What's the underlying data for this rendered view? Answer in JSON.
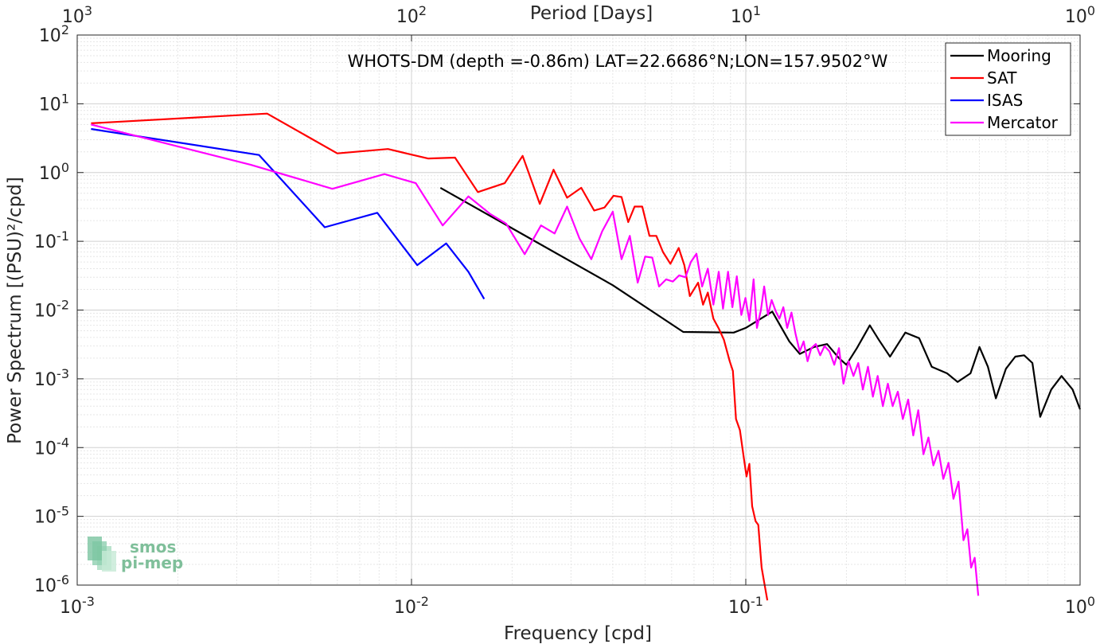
{
  "chart_data": {
    "type": "line",
    "title": "WHOTS-DM (depth =-0.86m) LAT=22.6686°N;LON=157.9502°W",
    "xlabel": "Frequency [cpd]",
    "ylabel": "Power Spectrum [(PSU)²/cpd]",
    "top_xlabel": "Period [Days]",
    "x_scale": "log",
    "y_scale": "log",
    "xlim": [
      0.001,
      1
    ],
    "ylim": [
      1e-06,
      100
    ],
    "grid": true,
    "legend_position": "top-right",
    "x_tick_labels": [
      {
        "base": "10",
        "exp": "-3",
        "value": 0.001
      },
      {
        "base": "10",
        "exp": "-2",
        "value": 0.01
      },
      {
        "base": "10",
        "exp": "-1",
        "value": 0.1
      },
      {
        "base": "10",
        "exp": "0",
        "value": 1
      }
    ],
    "top_tick_labels": [
      {
        "base": "10",
        "exp": "3",
        "value": 0.001
      },
      {
        "base": "10",
        "exp": "2",
        "value": 0.01
      },
      {
        "base": "10",
        "exp": "1",
        "value": 0.1
      },
      {
        "base": "10",
        "exp": "0",
        "value": 1
      }
    ],
    "y_tick_labels": [
      {
        "base": "10",
        "exp": "2",
        "value": 100
      },
      {
        "base": "10",
        "exp": "1",
        "value": 10
      },
      {
        "base": "10",
        "exp": "0",
        "value": 1
      },
      {
        "base": "10",
        "exp": "-1",
        "value": 0.1
      },
      {
        "base": "10",
        "exp": "-2",
        "value": 0.01
      },
      {
        "base": "10",
        "exp": "-3",
        "value": 0.001
      },
      {
        "base": "10",
        "exp": "-4",
        "value": 0.0001
      },
      {
        "base": "10",
        "exp": "-5",
        "value": 1e-05
      },
      {
        "base": "10",
        "exp": "-6",
        "value": 1e-06
      }
    ],
    "series": [
      {
        "name": "Mooring",
        "color": "#000000",
        "points": [
          [
            0.0122,
            0.6
          ],
          [
            0.04,
            0.023
          ],
          [
            0.065,
            0.0048
          ],
          [
            0.092,
            0.0047
          ],
          [
            0.1,
            0.0055
          ],
          [
            0.12,
            0.0095
          ],
          [
            0.135,
            0.0035
          ],
          [
            0.145,
            0.0023
          ],
          [
            0.16,
            0.0029
          ],
          [
            0.175,
            0.0032
          ],
          [
            0.19,
            0.002
          ],
          [
            0.2,
            0.0016
          ],
          [
            0.215,
            0.0028
          ],
          [
            0.235,
            0.006
          ],
          [
            0.25,
            0.0037
          ],
          [
            0.27,
            0.0021
          ],
          [
            0.3,
            0.0047
          ],
          [
            0.33,
            0.0039
          ],
          [
            0.36,
            0.0015
          ],
          [
            0.4,
            0.0012
          ],
          [
            0.43,
            0.0009
          ],
          [
            0.47,
            0.0012
          ],
          [
            0.5,
            0.0029
          ],
          [
            0.53,
            0.0015
          ],
          [
            0.56,
            0.00052
          ],
          [
            0.6,
            0.0014
          ],
          [
            0.64,
            0.0021
          ],
          [
            0.68,
            0.0022
          ],
          [
            0.72,
            0.0017
          ],
          [
            0.76,
            0.00028
          ],
          [
            0.82,
            0.0007
          ],
          [
            0.88,
            0.0011
          ],
          [
            0.95,
            0.0007
          ],
          [
            1.0,
            0.00036
          ]
        ]
      },
      {
        "name": "SAT",
        "color": "#ff0000",
        "points": [
          [
            0.0011,
            5.2
          ],
          [
            0.0037,
            7.2
          ],
          [
            0.006,
            1.9
          ],
          [
            0.0085,
            2.2
          ],
          [
            0.0112,
            1.6
          ],
          [
            0.0135,
            1.65
          ],
          [
            0.0158,
            0.52
          ],
          [
            0.019,
            0.7
          ],
          [
            0.0215,
            1.75
          ],
          [
            0.0242,
            0.35
          ],
          [
            0.0266,
            1.1
          ],
          [
            0.0292,
            0.43
          ],
          [
            0.0322,
            0.6
          ],
          [
            0.0352,
            0.28
          ],
          [
            0.0378,
            0.31
          ],
          [
            0.0402,
            0.46
          ],
          [
            0.0425,
            0.44
          ],
          [
            0.0445,
            0.19
          ],
          [
            0.0465,
            0.32
          ],
          [
            0.049,
            0.32
          ],
          [
            0.0515,
            0.12
          ],
          [
            0.054,
            0.12
          ],
          [
            0.0565,
            0.07
          ],
          [
            0.0595,
            0.047
          ],
          [
            0.063,
            0.08
          ],
          [
            0.0655,
            0.045
          ],
          [
            0.068,
            0.016
          ],
          [
            0.072,
            0.025
          ],
          [
            0.0745,
            0.012
          ],
          [
            0.077,
            0.018
          ],
          [
            0.08,
            0.0075
          ],
          [
            0.083,
            0.0054
          ],
          [
            0.086,
            0.0037
          ],
          [
            0.0895,
            0.0018
          ],
          [
            0.0915,
            0.0013
          ],
          [
            0.0935,
            0.00026
          ],
          [
            0.096,
            0.00018
          ],
          [
            0.0985,
            7.5e-05
          ],
          [
            0.1005,
            3.8e-05
          ],
          [
            0.1025,
            5.8e-05
          ],
          [
            0.1045,
            1.4e-05
          ],
          [
            0.107,
            8.5e-06
          ],
          [
            0.109,
            7.5e-06
          ],
          [
            0.1115,
            1.8e-06
          ],
          [
            0.1135,
            1.1e-06
          ],
          [
            0.116,
            6e-07
          ]
        ]
      },
      {
        "name": "ISAS",
        "color": "#0000ff",
        "points": [
          [
            0.0011,
            4.3
          ],
          [
            0.0035,
            1.8
          ],
          [
            0.0055,
            0.16
          ],
          [
            0.0079,
            0.26
          ],
          [
            0.0104,
            0.045
          ],
          [
            0.0127,
            0.093
          ],
          [
            0.0148,
            0.036
          ],
          [
            0.0165,
            0.0145
          ]
        ]
      },
      {
        "name": "Mercator",
        "color": "#ff00ff",
        "points": [
          [
            0.0011,
            5.0
          ],
          [
            0.0033,
            1.3
          ],
          [
            0.0058,
            0.58
          ],
          [
            0.0083,
            0.95
          ],
          [
            0.0103,
            0.7
          ],
          [
            0.0124,
            0.17
          ],
          [
            0.0148,
            0.45
          ],
          [
            0.0172,
            0.25
          ],
          [
            0.0192,
            0.18
          ],
          [
            0.0218,
            0.065
          ],
          [
            0.0244,
            0.17
          ],
          [
            0.0268,
            0.13
          ],
          [
            0.0292,
            0.32
          ],
          [
            0.0318,
            0.11
          ],
          [
            0.0345,
            0.055
          ],
          [
            0.0372,
            0.14
          ],
          [
            0.04,
            0.27
          ],
          [
            0.0425,
            0.055
          ],
          [
            0.045,
            0.12
          ],
          [
            0.0475,
            0.025
          ],
          [
            0.05,
            0.06
          ],
          [
            0.0525,
            0.058
          ],
          [
            0.055,
            0.022
          ],
          [
            0.0578,
            0.028
          ],
          [
            0.0605,
            0.026
          ],
          [
            0.0632,
            0.032
          ],
          [
            0.066,
            0.03
          ],
          [
            0.0685,
            0.05
          ],
          [
            0.0712,
            0.066
          ],
          [
            0.074,
            0.022
          ],
          [
            0.077,
            0.04
          ],
          [
            0.08,
            0.012
          ],
          [
            0.083,
            0.036
          ],
          [
            0.0855,
            0.0105
          ],
          [
            0.0885,
            0.036
          ],
          [
            0.0912,
            0.011
          ],
          [
            0.094,
            0.031
          ],
          [
            0.097,
            0.0085
          ],
          [
            0.0998,
            0.015
          ],
          [
            0.1025,
            0.007
          ],
          [
            0.1055,
            0.028
          ],
          [
            0.108,
            0.0055
          ],
          [
            0.111,
            0.01
          ],
          [
            0.1135,
            0.022
          ],
          [
            0.1165,
            0.0085
          ],
          [
            0.1195,
            0.014
          ],
          [
            0.123,
            0.0095
          ],
          [
            0.126,
            0.0075
          ],
          [
            0.1295,
            0.011
          ],
          [
            0.133,
            0.0055
          ],
          [
            0.137,
            0.0092
          ],
          [
            0.141,
            0.0044
          ],
          [
            0.145,
            0.0025
          ],
          [
            0.149,
            0.0035
          ],
          [
            0.153,
            0.0018
          ],
          [
            0.157,
            0.0028
          ],
          [
            0.162,
            0.0032
          ],
          [
            0.167,
            0.0022
          ],
          [
            0.172,
            0.003
          ],
          [
            0.178,
            0.0025
          ],
          [
            0.184,
            0.0016
          ],
          [
            0.19,
            0.0028
          ],
          [
            0.196,
            0.00085
          ],
          [
            0.203,
            0.0018
          ],
          [
            0.21,
            0.0011
          ],
          [
            0.217,
            0.0017
          ],
          [
            0.224,
            0.0007
          ],
          [
            0.232,
            0.0015
          ],
          [
            0.24,
            0.00055
          ],
          [
            0.248,
            0.0011
          ],
          [
            0.257,
            0.0004
          ],
          [
            0.266,
            0.00085
          ],
          [
            0.275,
            0.0004
          ],
          [
            0.285,
            0.00065
          ],
          [
            0.295,
            0.00026
          ],
          [
            0.306,
            0.0005
          ],
          [
            0.317,
            0.00015
          ],
          [
            0.328,
            0.00035
          ],
          [
            0.34,
            8e-05
          ],
          [
            0.352,
            0.00014
          ],
          [
            0.364,
            5.5e-05
          ],
          [
            0.377,
            9e-05
          ],
          [
            0.39,
            3.5e-05
          ],
          [
            0.404,
            6e-05
          ],
          [
            0.418,
            1.8e-05
          ],
          [
            0.433,
            3.2e-05
          ],
          [
            0.448,
            4.5e-06
          ],
          [
            0.46,
            6.5e-06
          ],
          [
            0.472,
            1.8e-06
          ],
          [
            0.484,
            2.5e-06
          ],
          [
            0.496,
            7e-07
          ]
        ]
      }
    ],
    "logo": {
      "line1": "smos",
      "line2": "pi-mep"
    }
  }
}
